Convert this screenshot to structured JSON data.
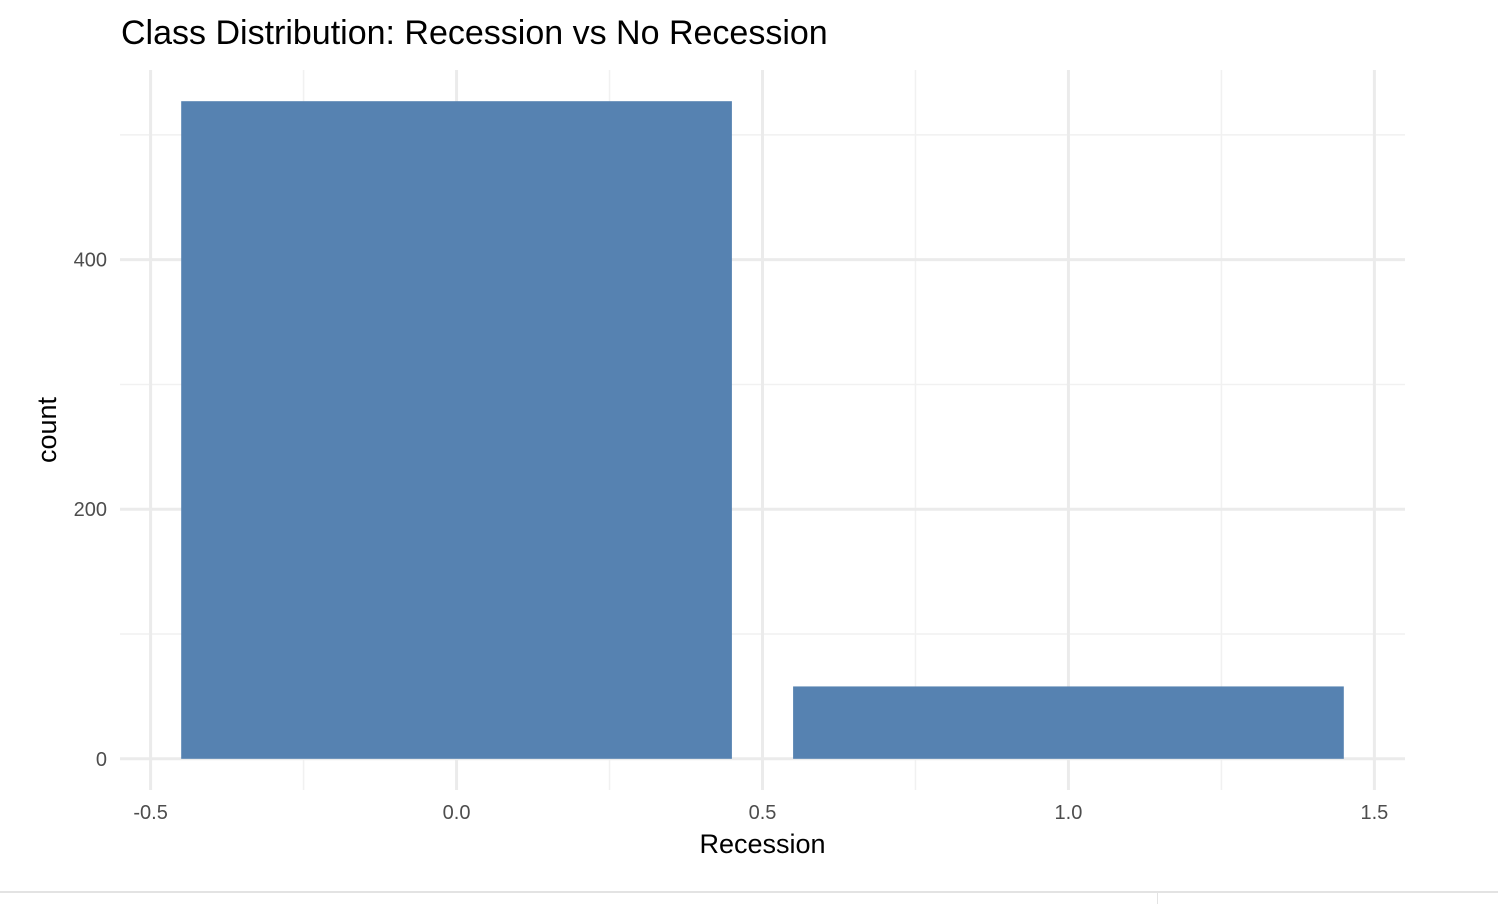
{
  "chart_data": {
    "type": "bar",
    "title": "Class Distribution: Recession vs No Recession",
    "xlabel": "Recession",
    "ylabel": "count",
    "categories": [
      0,
      1
    ],
    "values": [
      527,
      58
    ],
    "bar_width": 0.9,
    "xlim": [
      -0.55,
      1.55
    ],
    "ylim": [
      -25,
      552
    ],
    "x_ticks": [
      -0.5,
      0.0,
      0.5,
      1.0,
      1.5
    ],
    "x_tick_labels": [
      "-0.5",
      "0.0",
      "0.5",
      "1.0",
      "1.5"
    ],
    "x_minor_ticks": [
      -0.25,
      0.25,
      0.75,
      1.25
    ],
    "y_ticks": [
      0,
      200,
      400
    ],
    "y_tick_labels": [
      "0",
      "200",
      "400"
    ],
    "y_minor_ticks": [
      100,
      300,
      500
    ],
    "bar_color": "#5682B1",
    "grid": true,
    "theme": "minimal",
    "legend": "none"
  }
}
